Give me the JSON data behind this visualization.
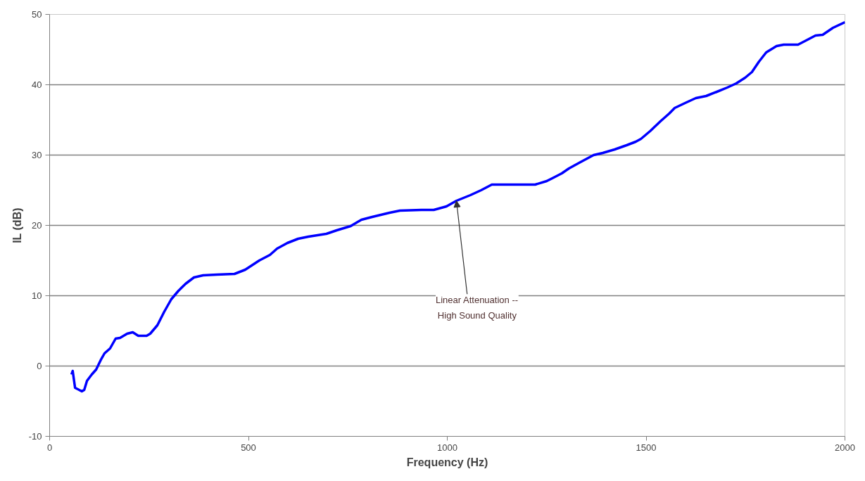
{
  "chart_data": {
    "type": "line",
    "xlabel": "Frequency (Hz)",
    "ylabel": "IL (dB)",
    "xlim": [
      0,
      2000
    ],
    "xticks": [
      0,
      500,
      1000,
      1500,
      2000
    ],
    "ylim": [
      -10,
      50
    ],
    "yticks": [
      -10,
      0,
      10,
      20,
      30,
      40,
      50
    ],
    "grid": "y",
    "marker": "none",
    "line_style": "solid",
    "annotations": [
      {
        "text": "Linear Attenuation --\nHigh Sound Quality",
        "x": 1023,
        "y": 23.5
      }
    ],
    "x": [
      55,
      58,
      64,
      71,
      81,
      87,
      94,
      106,
      117,
      129,
      138,
      152,
      166,
      177,
      195,
      209,
      223,
      244,
      253,
      271,
      288,
      306,
      324,
      342,
      363,
      386,
      421,
      465,
      492,
      527,
      554,
      572,
      598,
      625,
      651,
      696,
      722,
      757,
      784,
      811,
      855,
      881,
      935,
      966,
      998,
      1023,
      1058,
      1085,
      1112,
      1165,
      1221,
      1250,
      1271,
      1288,
      1306,
      1335,
      1368,
      1391,
      1421,
      1451,
      1474,
      1487,
      1510,
      1536,
      1558,
      1572,
      1598,
      1625,
      1651,
      1678,
      1704,
      1727,
      1749,
      1766,
      1784,
      1802,
      1828,
      1846,
      1882,
      1899,
      1926,
      1944,
      1970,
      2000
    ],
    "series": [
      {
        "color": "#0000ff",
        "values": [
          -1.2,
          -0.7,
          -3.1,
          -3.3,
          -3.6,
          -3.4,
          -2.1,
          -1.2,
          -0.5,
          0.9,
          1.8,
          2.5,
          3.9,
          4.0,
          4.6,
          4.8,
          4.3,
          4.3,
          4.6,
          5.8,
          7.7,
          9.5,
          10.7,
          11.7,
          12.6,
          12.9,
          13.0,
          13.1,
          13.7,
          15.0,
          15.8,
          16.7,
          17.5,
          18.1,
          18.4,
          18.8,
          19.3,
          19.9,
          20.8,
          21.2,
          21.8,
          22.1,
          22.2,
          22.2,
          22.7,
          23.5,
          24.3,
          25.0,
          25.8,
          25.8,
          25.8,
          26.3,
          26.9,
          27.4,
          28.1,
          29.0,
          30.0,
          30.3,
          30.8,
          31.4,
          31.9,
          32.3,
          33.4,
          34.8,
          35.9,
          36.7,
          37.4,
          38.1,
          38.4,
          39.0,
          39.6,
          40.2,
          41.0,
          41.8,
          43.3,
          44.6,
          45.5,
          45.7,
          45.7,
          46.2,
          47.0,
          47.1,
          48.1,
          48.9
        ]
      }
    ]
  }
}
